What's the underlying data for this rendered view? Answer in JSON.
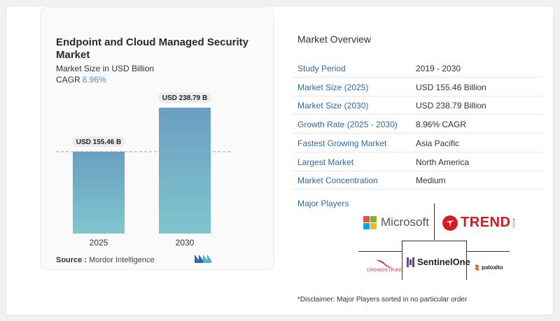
{
  "chart_data": {
    "type": "bar",
    "title": "Endpoint and Cloud Managed Security Market",
    "subtitle": "Market Size in USD Billion",
    "cagr_label": "CAGR",
    "cagr_value": "8.96%",
    "categories": [
      "2025",
      "2030"
    ],
    "values": [
      155.46,
      238.79
    ],
    "data_labels": [
      "USD 155.46 B",
      "USD 238.79 B"
    ],
    "ylim": [
      0,
      250
    ],
    "colors": {
      "bar_top": "#6b9ec2",
      "bar_bottom": "#7fc6cc"
    },
    "source_label": "Source :",
    "source_value": "Mordor Intelligence"
  },
  "overview": {
    "title": "Market Overview",
    "rows": [
      {
        "label": "Study Period",
        "value": "2019 - 2030"
      },
      {
        "label": "Market Size (2025)",
        "value": "USD 155.46 Billion"
      },
      {
        "label": "Market Size (2030)",
        "value": "USD 238.79 Billion"
      },
      {
        "label": "Growth Rate (2025 - 2030)",
        "value": "8.96% CAGR"
      },
      {
        "label": "Fastest Growing Market",
        "value": "Asia Pacific"
      },
      {
        "label": "Largest Market",
        "value": "North America"
      },
      {
        "label": "Market Concentration",
        "value": "Medium"
      }
    ]
  },
  "players": {
    "title": "Major Players",
    "microsoft": "Microsoft",
    "trend": "TREND",
    "trend_micro": "MICRO",
    "crowdstrike": "CROWDSTRIKE",
    "sentinelone": "SentinelOne",
    "paloalto": "paloalto"
  },
  "disclaimer": "*Disclaimer: Major Players sorted in no particular order",
  "icons": {
    "microsoft": "microsoft-logo-icon",
    "trend": "trend-micro-logo-icon",
    "crowdstrike": "crowdstrike-falcon-icon",
    "sentinelone": "sentinelone-icon",
    "paloalto": "paloalto-icon",
    "mordor": "mordor-logo-icon"
  }
}
